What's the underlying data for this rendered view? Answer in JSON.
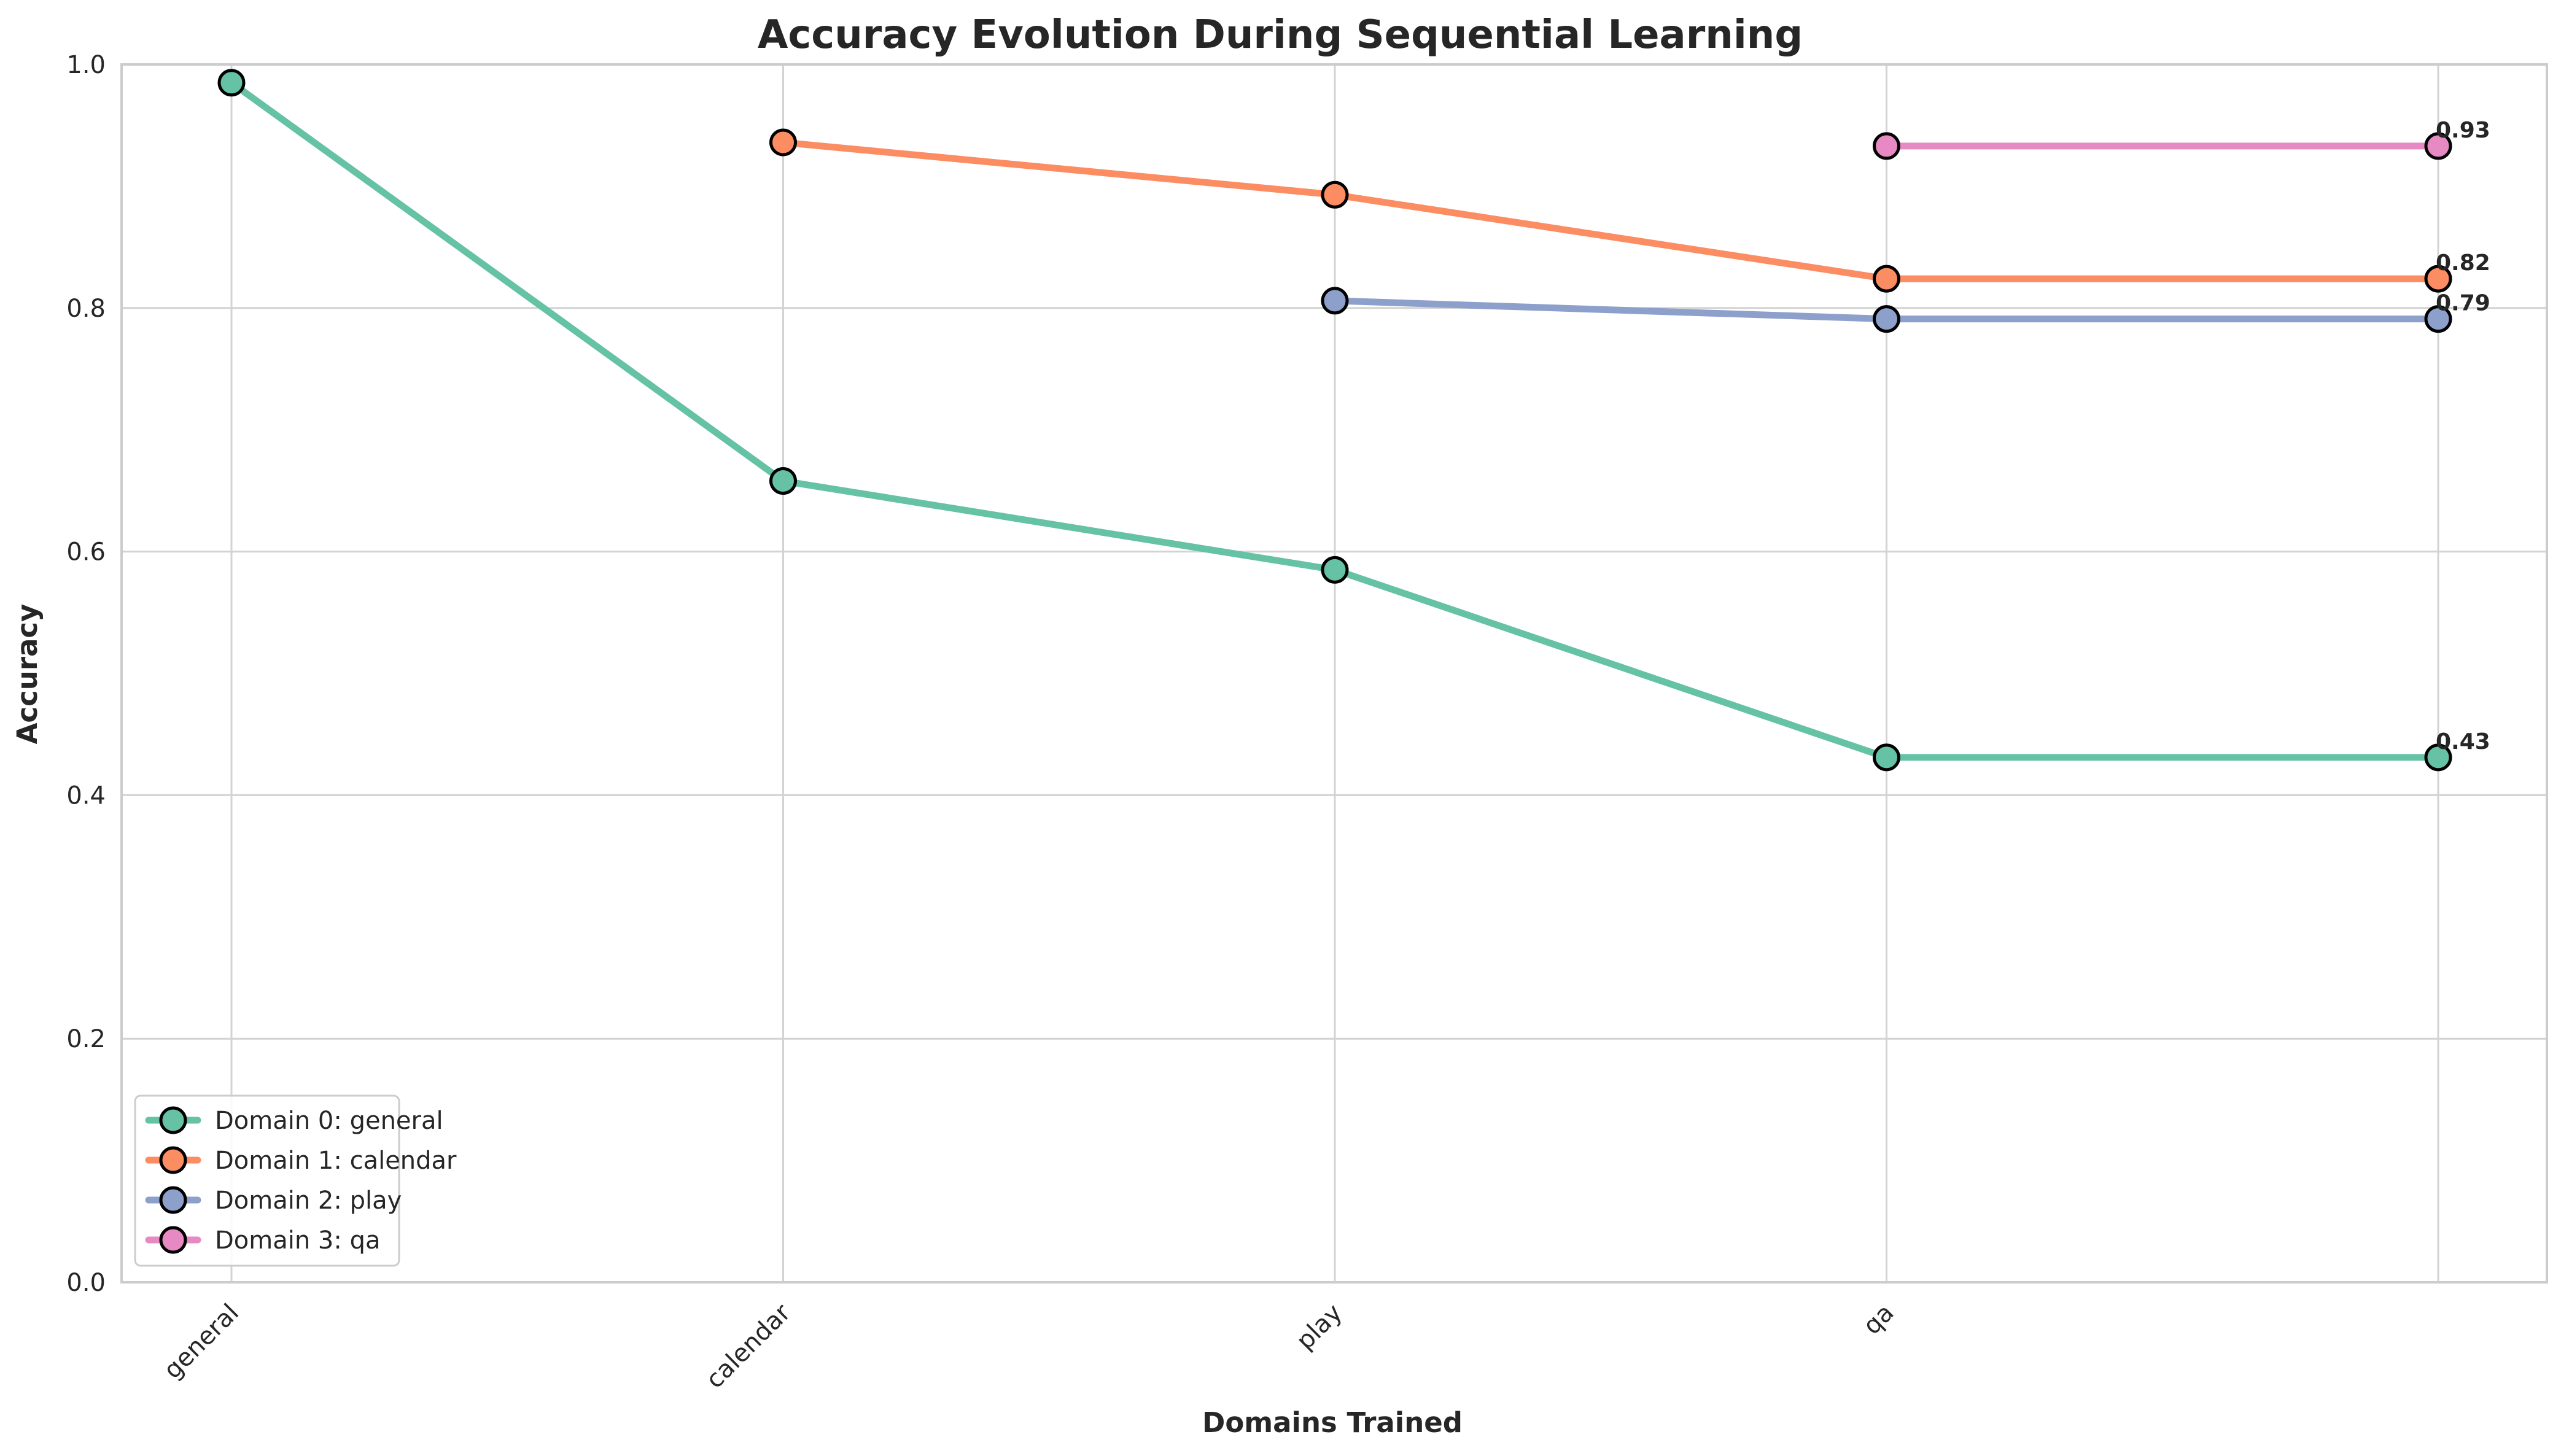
{
  "chart_data": {
    "type": "line",
    "title": "Accuracy Evolution During Sequential Learning",
    "xlabel": "Domains Trained",
    "ylabel": "Accuracy",
    "categories": [
      "general",
      "calendar",
      "play",
      "qa",
      ""
    ],
    "ylim": [
      0,
      1.0
    ],
    "yticks": [
      "0.0",
      "0.2",
      "0.4",
      "0.6",
      "0.8",
      "1.0"
    ],
    "grid": true,
    "legend_position": "lower-left",
    "series": [
      {
        "name": "Domain 0: general",
        "color": "#66c2a5",
        "values": [
          0.985,
          0.658,
          0.585,
          0.431,
          0.431
        ],
        "end_label": "0.43"
      },
      {
        "name": "Domain 1: calendar",
        "color": "#fc8d62",
        "values": [
          null,
          0.936,
          0.893,
          0.824,
          0.824
        ],
        "end_label": "0.82"
      },
      {
        "name": "Domain 2: play",
        "color": "#8da0cb",
        "values": [
          null,
          null,
          0.806,
          0.791,
          0.791
        ],
        "end_label": "0.79"
      },
      {
        "name": "Domain 3: qa",
        "color": "#e78ac3",
        "values": [
          null,
          null,
          null,
          0.933,
          0.933
        ],
        "end_label": "0.93"
      }
    ]
  }
}
